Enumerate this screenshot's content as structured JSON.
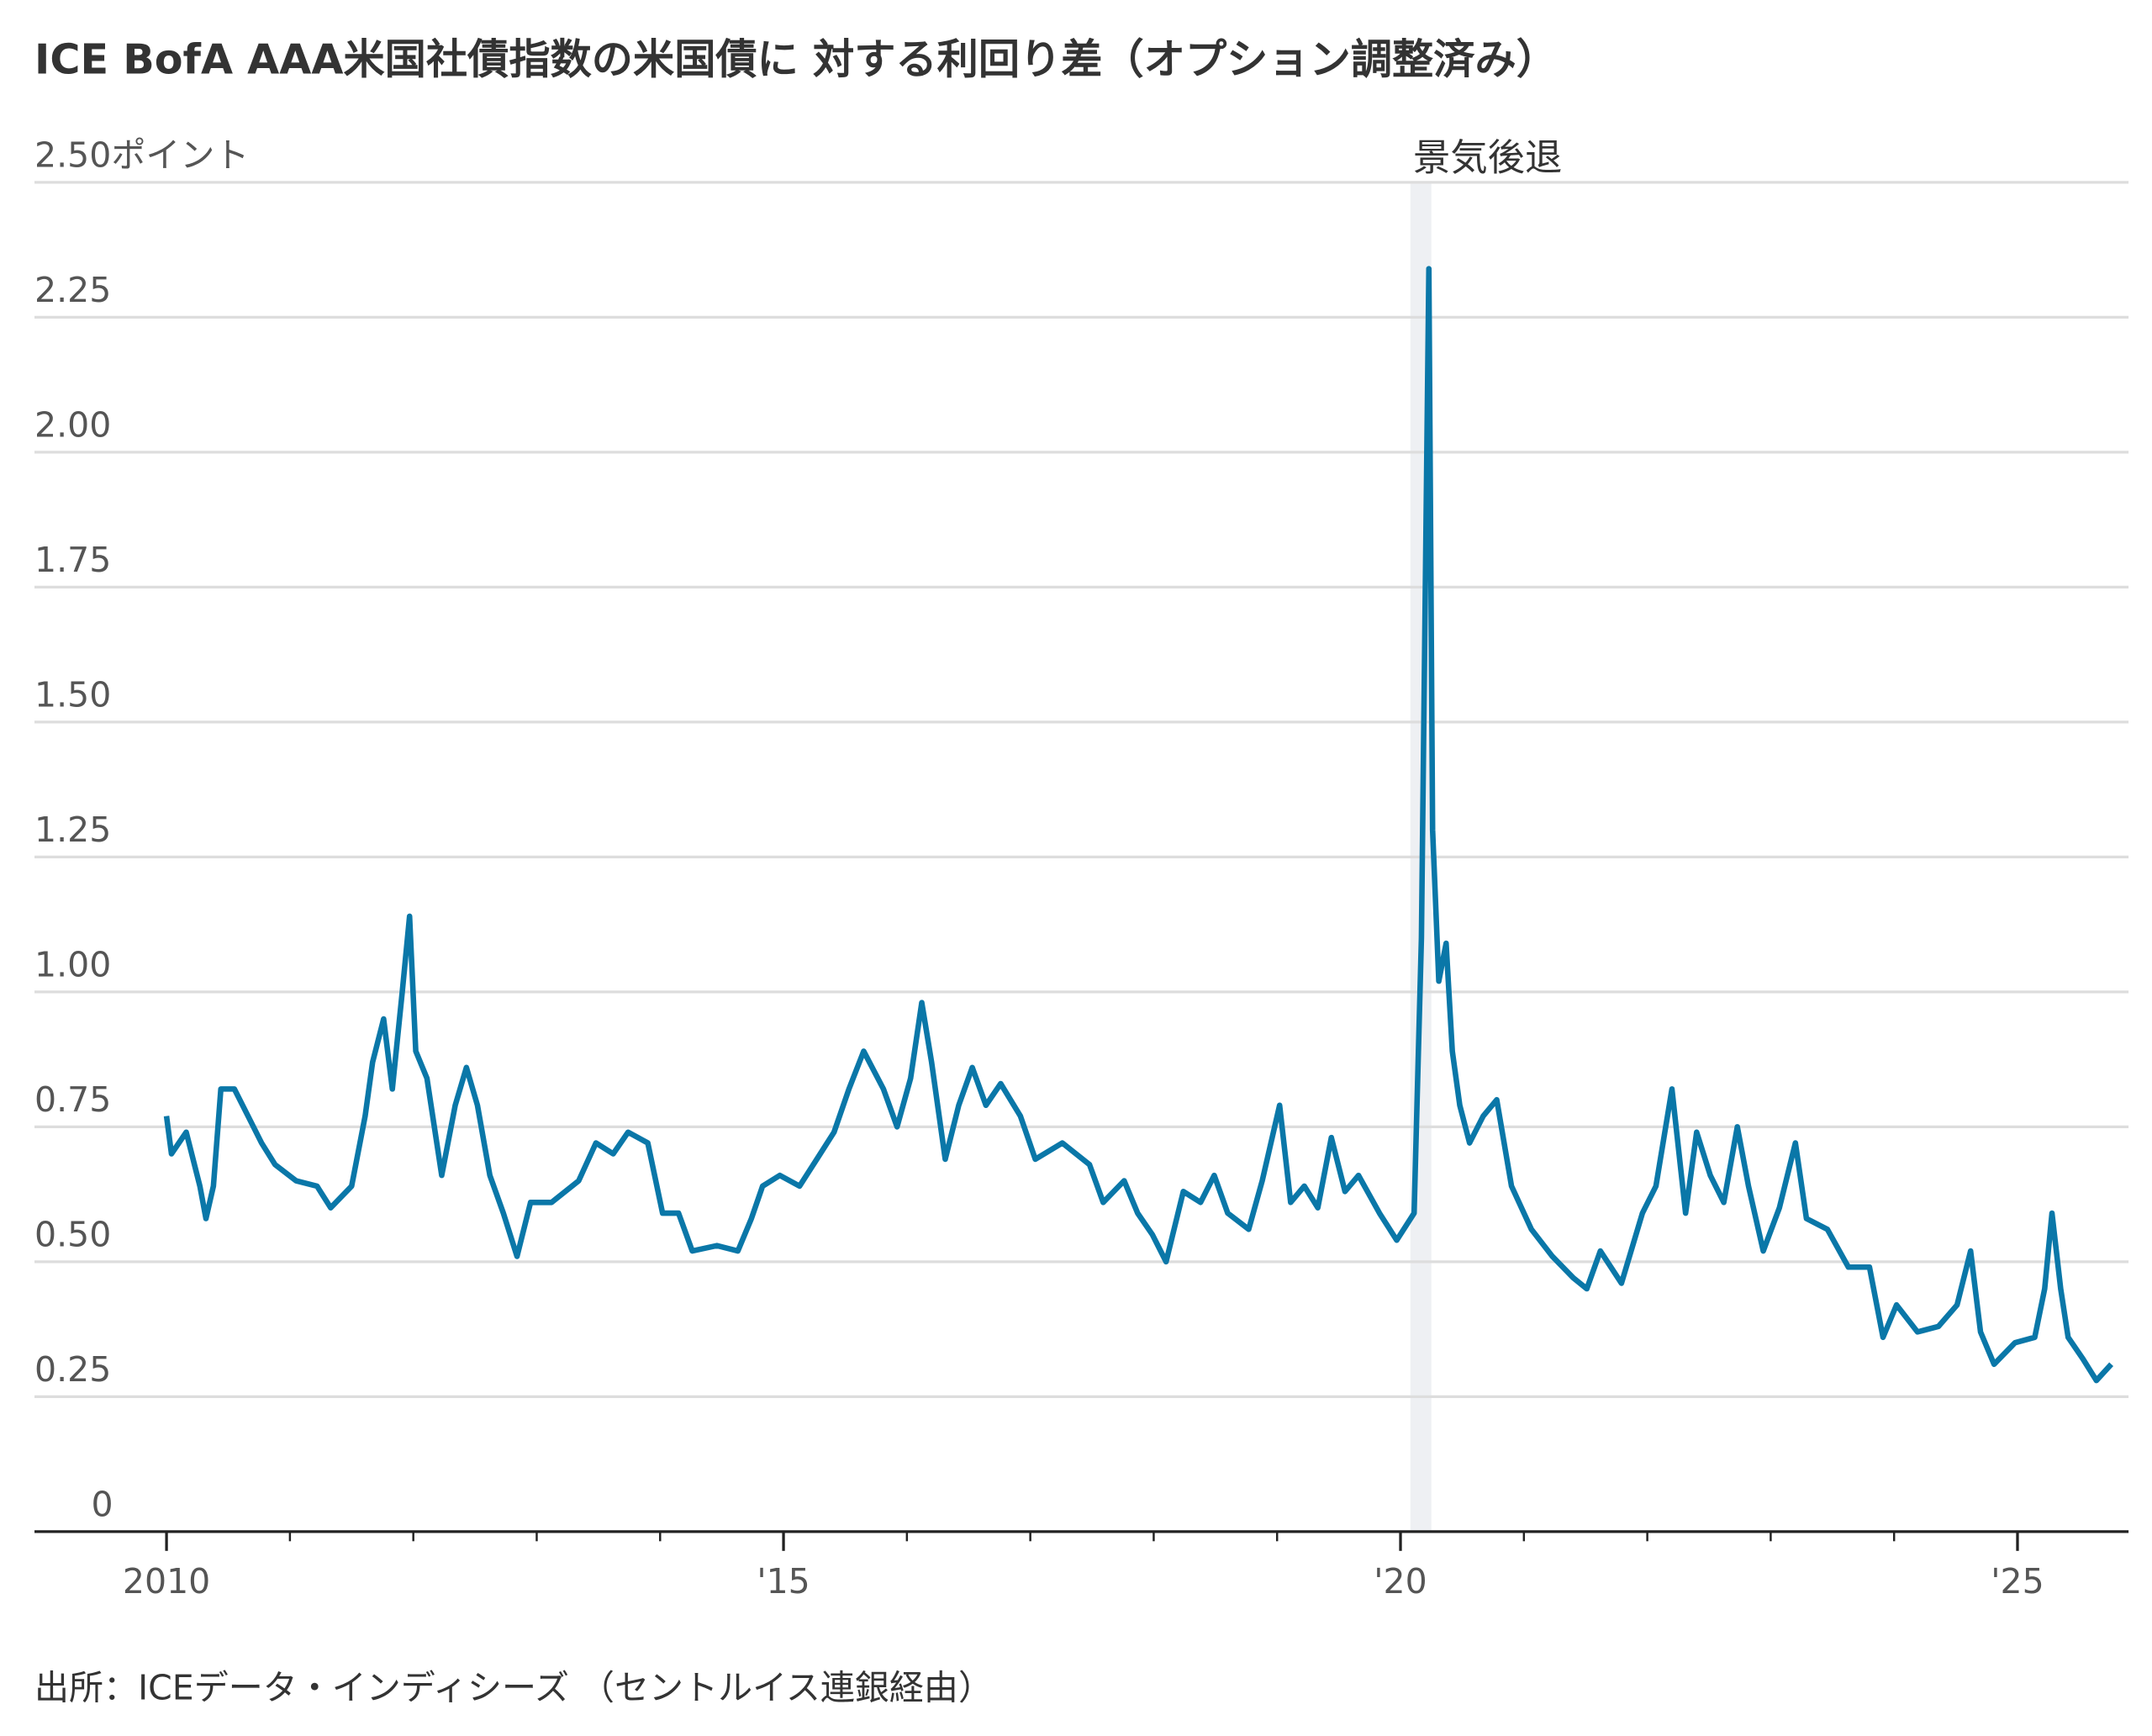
{
  "chart_data": {
    "type": "line",
    "title": "ICE BofA AAA米国社債指数の米国債に 対する利回り差（オプション調整済み）",
    "annotation": "景気後退",
    "source": "出所：ICEデータ・インディシーズ （セントルイス連銀経由）",
    "recession": [
      2020.08,
      2020.25
    ],
    "recession_color": "#eef0f3",
    "grid": true,
    "xlim": [
      2008.93,
      2025.9
    ],
    "ylim": [
      0,
      2.5
    ],
    "xticks": [
      {
        "value": 2010,
        "label": "2010"
      },
      {
        "value": 2015,
        "label": "'15"
      },
      {
        "value": 2020,
        "label": "'20"
      },
      {
        "value": 2025,
        "label": "'25"
      }
    ],
    "xminorticks": [
      2011,
      2012,
      2013,
      2014,
      2016,
      2017,
      2018,
      2019,
      2021,
      2022,
      2023,
      2024
    ],
    "yticks": [
      0,
      {
        "value": 0.25,
        "label": "0.25"
      },
      {
        "value": 0.5,
        "label": "0.50"
      },
      {
        "value": 0.75,
        "label": "0.75"
      },
      {
        "value": 1,
        "label": "1.00"
      },
      {
        "value": 1.25,
        "label": "1.25"
      },
      {
        "value": 1.5,
        "label": "1.50"
      },
      {
        "value": 1.75,
        "label": "1.75"
      },
      {
        "value": 2,
        "label": "2.00"
      },
      {
        "value": 2.25,
        "label": "2.25"
      },
      {
        "value": 2.5,
        "label": "2.50ポイント"
      }
    ],
    "series": [
      {
        "color": "#0a77a8",
        "x": [
          2010.0,
          2010.04,
          2010.16,
          2010.27,
          2010.32,
          2010.38,
          2010.44,
          2010.55,
          2010.66,
          2010.77,
          2010.88,
          2011.05,
          2011.22,
          2011.33,
          2011.5,
          2011.61,
          2011.67,
          2011.76,
          2011.83,
          2011.91,
          2011.97,
          2012.02,
          2012.11,
          2012.23,
          2012.34,
          2012.43,
          2012.52,
          2012.62,
          2012.73,
          2012.84,
          2012.95,
          2013.12,
          2013.34,
          2013.48,
          2013.62,
          2013.74,
          2013.9,
          2014.02,
          2014.15,
          2014.26,
          2014.46,
          2014.63,
          2014.74,
          2014.83,
          2014.97,
          2015.13,
          2015.27,
          2015.41,
          2015.53,
          2015.65,
          2015.81,
          2015.92,
          2016.03,
          2016.12,
          2016.2,
          2016.31,
          2016.42,
          2016.53,
          2016.64,
          2016.76,
          2016.92,
          2017.04,
          2017.26,
          2017.48,
          2017.59,
          2017.76,
          2017.87,
          2017.99,
          2018.1,
          2018.24,
          2018.38,
          2018.49,
          2018.6,
          2018.77,
          2018.88,
          2019.02,
          2019.11,
          2019.22,
          2019.33,
          2019.44,
          2019.55,
          2019.66,
          2019.83,
          2019.97,
          2020.11,
          2020.17,
          2020.23,
          2020.26,
          2020.31,
          2020.37,
          2020.42,
          2020.48,
          2020.56,
          2020.67,
          2020.78,
          2020.9,
          2021.06,
          2021.23,
          2021.4,
          2021.51,
          2021.62,
          2021.79,
          2021.96,
          2022.07,
          2022.2,
          2022.31,
          2022.4,
          2022.51,
          2022.62,
          2022.73,
          2022.82,
          2022.94,
          2023.07,
          2023.2,
          2023.29,
          2023.46,
          2023.63,
          2023.8,
          2023.91,
          2024.02,
          2024.19,
          2024.36,
          2024.51,
          2024.62,
          2024.7,
          2024.81,
          2024.98,
          2025.14,
          2025.22,
          2025.28,
          2025.35,
          2025.41,
          2025.53,
          2025.64,
          2025.76
        ],
        "values": [
          0.77,
          0.7,
          0.74,
          0.64,
          0.58,
          0.64,
          0.82,
          0.82,
          0.77,
          0.72,
          0.68,
          0.65,
          0.64,
          0.6,
          0.64,
          0.77,
          0.87,
          0.95,
          0.82,
          1.0,
          1.14,
          0.89,
          0.84,
          0.66,
          0.79,
          0.86,
          0.79,
          0.66,
          0.59,
          0.51,
          0.61,
          0.61,
          0.65,
          0.72,
          0.7,
          0.74,
          0.72,
          0.59,
          0.59,
          0.52,
          0.53,
          0.52,
          0.58,
          0.64,
          0.66,
          0.64,
          0.69,
          0.74,
          0.82,
          0.89,
          0.82,
          0.75,
          0.84,
          0.98,
          0.87,
          0.69,
          0.79,
          0.86,
          0.79,
          0.83,
          0.77,
          0.69,
          0.72,
          0.68,
          0.61,
          0.65,
          0.59,
          0.55,
          0.5,
          0.63,
          0.61,
          0.66,
          0.59,
          0.56,
          0.65,
          0.79,
          0.61,
          0.64,
          0.6,
          0.73,
          0.63,
          0.66,
          0.59,
          0.54,
          0.59,
          1.1,
          2.34,
          1.3,
          1.02,
          1.09,
          0.89,
          0.79,
          0.72,
          0.77,
          0.8,
          0.64,
          0.56,
          0.51,
          0.47,
          0.45,
          0.52,
          0.46,
          0.59,
          0.64,
          0.82,
          0.59,
          0.74,
          0.66,
          0.61,
          0.75,
          0.64,
          0.52,
          0.6,
          0.72,
          0.58,
          0.56,
          0.49,
          0.49,
          0.36,
          0.42,
          0.37,
          0.38,
          0.42,
          0.52,
          0.37,
          0.31,
          0.35,
          0.36,
          0.45,
          0.59,
          0.45,
          0.36,
          0.32,
          0.28,
          0.31
        ]
      }
    ]
  }
}
